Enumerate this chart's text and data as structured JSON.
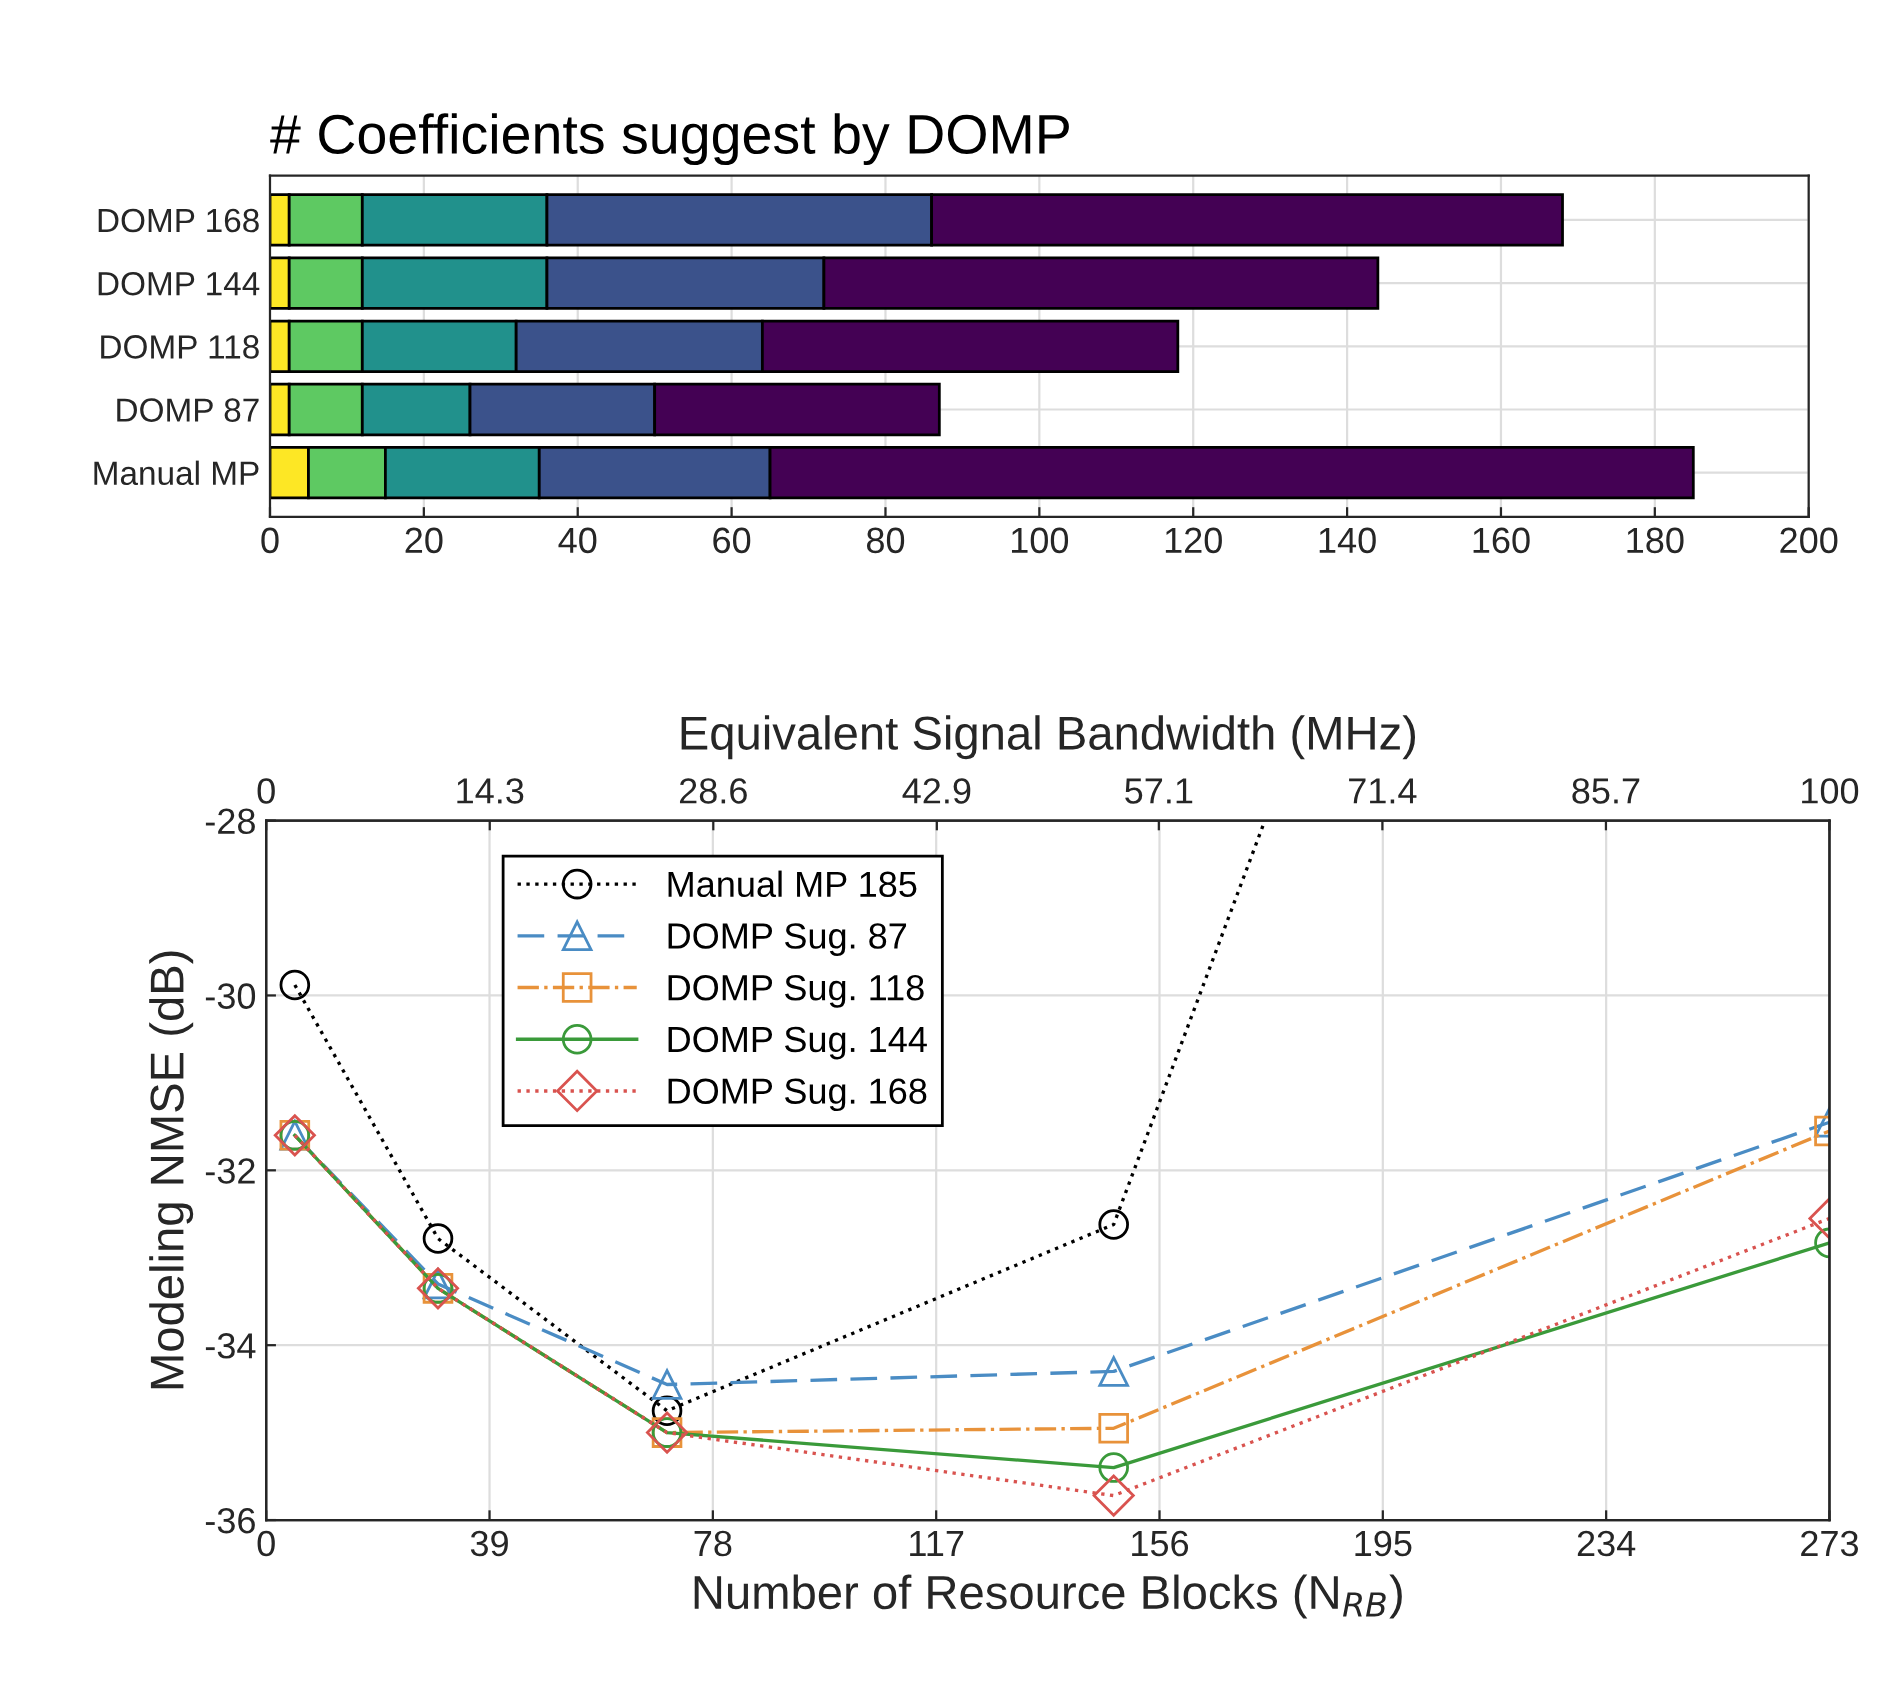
{
  "chart_data": [
    {
      "type": "bar",
      "title": "# Coefficients suggest by DOMP",
      "orientation": "horizontal",
      "stacked": true,
      "categories": [
        "DOMP 168",
        "DOMP 144",
        "DOMP 118",
        "DOMP 87",
        "Manual MP"
      ],
      "xlim": [
        0,
        200
      ],
      "xticks": [
        0,
        20,
        40,
        60,
        80,
        100,
        120,
        140,
        160,
        180,
        200
      ],
      "grid": true,
      "series": [
        {
          "color": "#fde725",
          "values": [
            2.5,
            2.5,
            2.5,
            2.5,
            5
          ]
        },
        {
          "color": "#5ec962",
          "values": [
            9.5,
            9.5,
            9.5,
            9.5,
            10
          ]
        },
        {
          "color": "#21918c",
          "values": [
            24,
            24,
            20,
            14,
            20
          ]
        },
        {
          "color": "#3b528b",
          "values": [
            50,
            36,
            32,
            24,
            30
          ]
        },
        {
          "color": "#440154",
          "values": [
            82,
            72,
            54,
            37,
            120
          ]
        }
      ]
    },
    {
      "type": "line",
      "xlabel": "Number of Resource Blocks (N$_{RB}$)",
      "x2label": "Equivalent Signal Bandwidth (MHz)",
      "ylabel": "Modeling NMSE (dB)",
      "xlim": [
        0,
        273
      ],
      "xticks": [
        0,
        39,
        78,
        117,
        156,
        195,
        234,
        273
      ],
      "x2lim": [
        0,
        100
      ],
      "x2ticks": [
        0,
        14.3,
        28.6,
        42.9,
        57.1,
        71.4,
        85.7,
        100
      ],
      "ylim": [
        -36,
        -28
      ],
      "yticks": [
        -36,
        -34,
        -32,
        -30,
        -28
      ],
      "grid": true,
      "legend": "top left",
      "series": [
        {
          "name": "Manual MP 185",
          "color": "#000000",
          "marker": "circle",
          "line_style": "dotted",
          "x": [
            5,
            30,
            70,
            148,
            174.4
          ],
          "values": [
            -29.88,
            -32.78,
            -34.75,
            -32.62,
            -28
          ]
        },
        {
          "name": "DOMP Sug. 87",
          "color": "#4a8cc4",
          "marker": "triangle",
          "line_style": "dashed",
          "x": [
            5,
            30,
            70,
            148,
            273
          ],
          "values": [
            -31.6,
            -33.3,
            -34.45,
            -34.3,
            -31.45
          ]
        },
        {
          "name": "DOMP Sug. 118",
          "color": "#e8923a",
          "marker": "square",
          "line_style": "dashdot",
          "x": [
            5,
            30,
            70,
            148,
            273
          ],
          "values": [
            -31.6,
            -33.35,
            -35.0,
            -34.95,
            -31.55
          ]
        },
        {
          "name": "DOMP Sug. 144",
          "color": "#3a9a3a",
          "marker": "circle",
          "line_style": "solid",
          "x": [
            5,
            30,
            70,
            148,
            273
          ],
          "values": [
            -31.6,
            -33.35,
            -35.0,
            -35.4,
            -32.83
          ]
        },
        {
          "name": "DOMP Sug. 168",
          "color": "#d9534f",
          "marker": "diamond",
          "line_style": "dotted",
          "x": [
            5,
            30,
            70,
            148,
            273
          ],
          "values": [
            -31.6,
            -33.35,
            -35.0,
            -35.72,
            -32.55
          ]
        }
      ]
    }
  ]
}
